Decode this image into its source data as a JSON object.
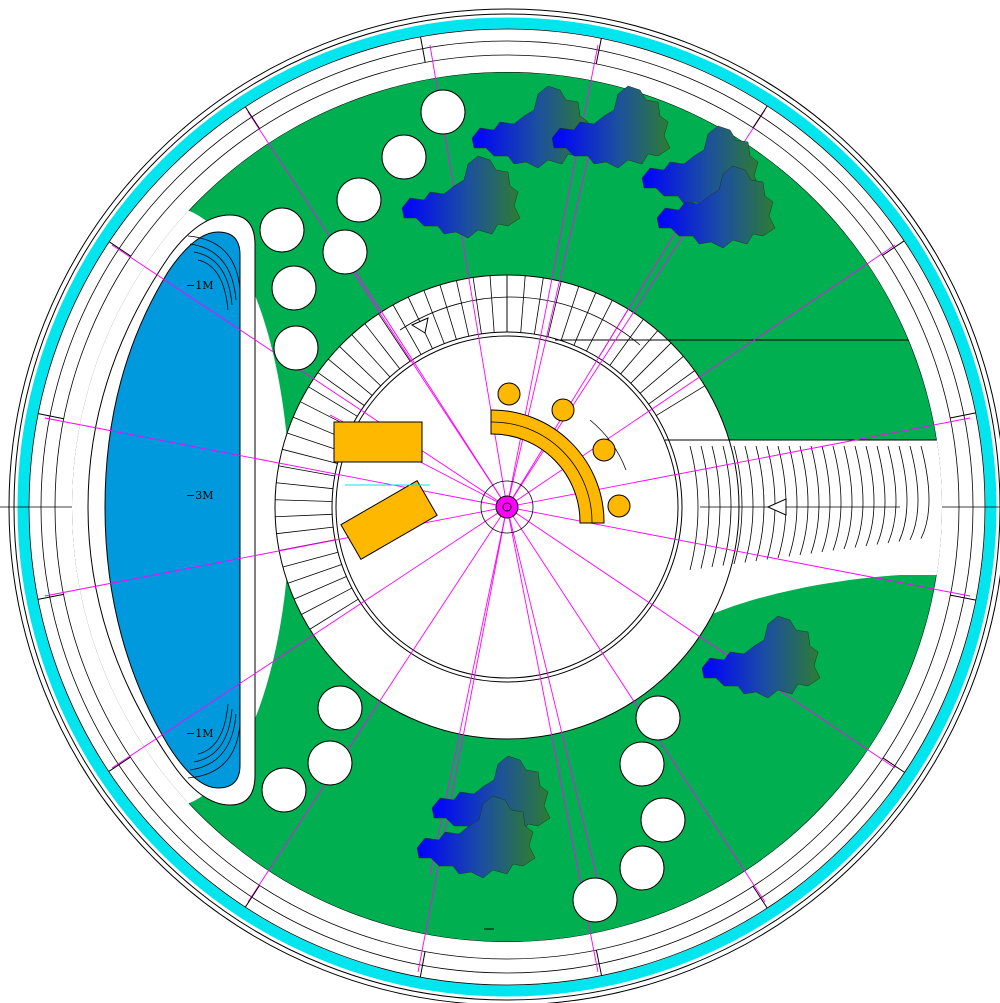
{
  "colors": {
    "background": "#ffffff",
    "lawn": "#00b050",
    "outer_band": "#00e5ee",
    "pool_water": "#0099dd",
    "furniture": "#ffb800",
    "center_marker": "#ff00ff",
    "guide_lines": "#ff00ff",
    "tree_blue": "#0000ff",
    "tree_green": "#2e7d32",
    "linework": "#000000"
  },
  "depth_labels": {
    "upper": "−1M",
    "middle": "−3M",
    "lower": "−1M"
  },
  "icons": {
    "ramp_arrow_upper": "triangle-left-icon",
    "ramp_arrow_right": "triangle-left-icon",
    "trees": "tree-cluster-icon",
    "stools": "round-stool-icon"
  }
}
